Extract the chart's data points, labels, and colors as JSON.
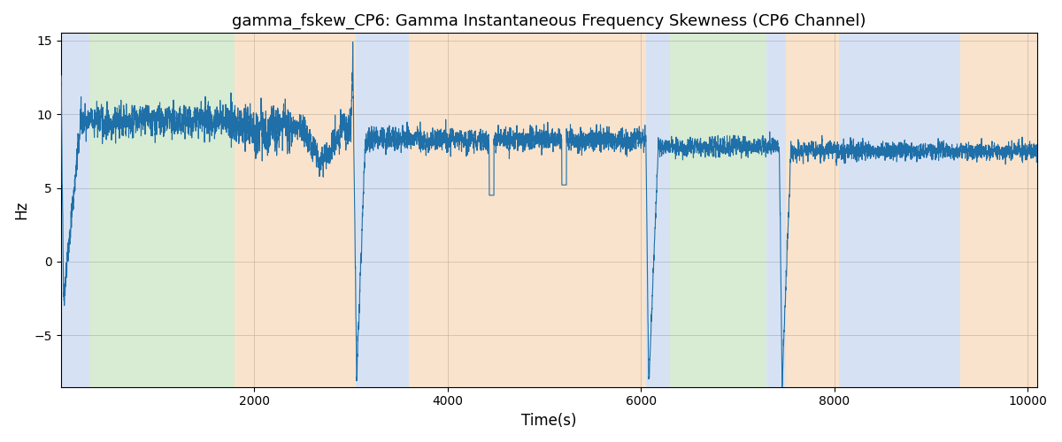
{
  "title": "gamma_fskew_CP6: Gamma Instantaneous Frequency Skewness (CP6 Channel)",
  "xlabel": "Time(s)",
  "ylabel": "Hz",
  "xlim": [
    0,
    10100
  ],
  "ylim": [
    -8.5,
    15.5
  ],
  "yticks": [
    -5,
    0,
    5,
    10,
    15
  ],
  "xticks": [
    2000,
    4000,
    6000,
    8000,
    10000
  ],
  "line_color": "#1f6fa8",
  "line_width": 0.8,
  "bg_color": "#ffffff",
  "bands": [
    {
      "start": 0,
      "end": 300,
      "color": "#aec6e8",
      "alpha": 0.5
    },
    {
      "start": 300,
      "end": 1800,
      "color": "#b2d8a8",
      "alpha": 0.5
    },
    {
      "start": 1800,
      "end": 3050,
      "color": "#f5c99a",
      "alpha": 0.5
    },
    {
      "start": 3050,
      "end": 3600,
      "color": "#aec6e8",
      "alpha": 0.5
    },
    {
      "start": 3600,
      "end": 6050,
      "color": "#f5c99a",
      "alpha": 0.5
    },
    {
      "start": 6050,
      "end": 6300,
      "color": "#aec6e8",
      "alpha": 0.5
    },
    {
      "start": 6300,
      "end": 7300,
      "color": "#b2d8a8",
      "alpha": 0.5
    },
    {
      "start": 7300,
      "end": 7500,
      "color": "#aec6e8",
      "alpha": 0.5
    },
    {
      "start": 7500,
      "end": 8050,
      "color": "#f5c99a",
      "alpha": 0.5
    },
    {
      "start": 8050,
      "end": 9300,
      "color": "#aec6e8",
      "alpha": 0.5
    },
    {
      "start": 9300,
      "end": 10100,
      "color": "#f5c99a",
      "alpha": 0.5
    }
  ],
  "seed": 42
}
